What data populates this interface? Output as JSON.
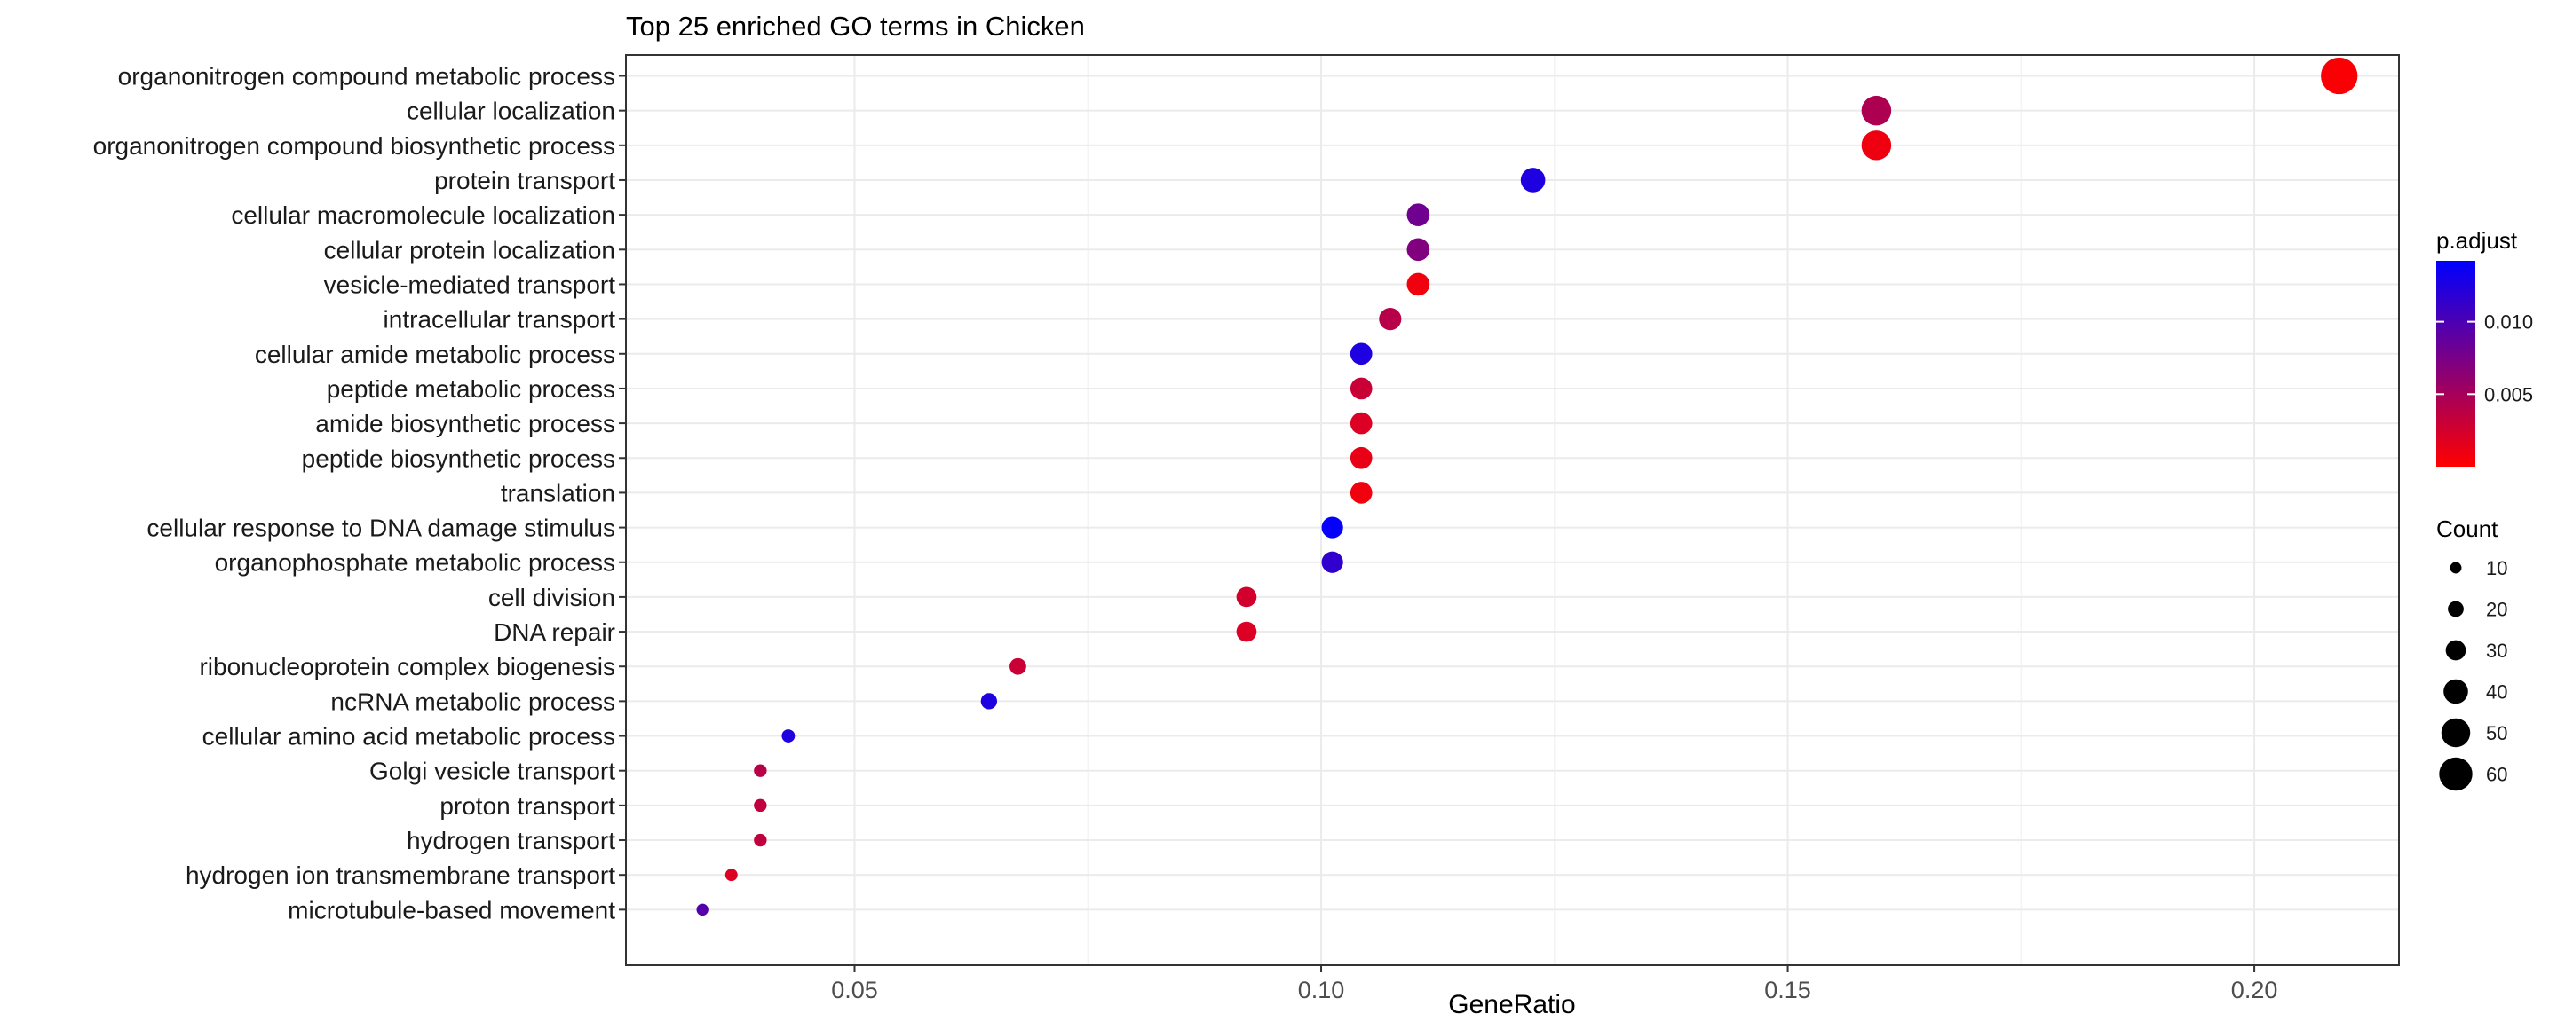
{
  "chart_data": {
    "type": "scatter",
    "title": "Top 25 enriched GO terms in Chicken",
    "xlabel": "GeneRatio",
    "ylabel": "",
    "xlim": [
      0.0255,
      0.2155
    ],
    "xticks": [
      0.05,
      0.1,
      0.15,
      0.2
    ],
    "xtick_labels": [
      "0.05",
      "0.10",
      "0.15",
      "0.20"
    ],
    "grid": true,
    "legend_position": "right",
    "terms": [
      {
        "term": "organonitrogen compound metabolic process",
        "gene_ratio": 0.2091,
        "count": 68,
        "p_adjust": 0.0003
      },
      {
        "term": "cellular localization",
        "gene_ratio": 0.1595,
        "count": 52,
        "p_adjust": 0.0045
      },
      {
        "term": "organonitrogen compound biosynthetic process",
        "gene_ratio": 0.1595,
        "count": 52,
        "p_adjust": 0.0009
      },
      {
        "term": "protein transport",
        "gene_ratio": 0.1227,
        "count": 40,
        "p_adjust": 0.0125
      },
      {
        "term": "cellular macromolecule localization",
        "gene_ratio": 0.1104,
        "count": 36,
        "p_adjust": 0.008
      },
      {
        "term": "cellular protein localization",
        "gene_ratio": 0.1104,
        "count": 36,
        "p_adjust": 0.007
      },
      {
        "term": "vesicle-mediated transport",
        "gene_ratio": 0.1104,
        "count": 36,
        "p_adjust": 0.0008
      },
      {
        "term": "intracellular transport",
        "gene_ratio": 0.1074,
        "count": 35,
        "p_adjust": 0.004
      },
      {
        "term": "cellular amide metabolic process",
        "gene_ratio": 0.1043,
        "count": 34,
        "p_adjust": 0.0125
      },
      {
        "term": "peptide metabolic process",
        "gene_ratio": 0.1043,
        "count": 34,
        "p_adjust": 0.003
      },
      {
        "term": "amide biosynthetic process",
        "gene_ratio": 0.1043,
        "count": 34,
        "p_adjust": 0.002
      },
      {
        "term": "peptide biosynthetic process",
        "gene_ratio": 0.1043,
        "count": 34,
        "p_adjust": 0.0012
      },
      {
        "term": "translation",
        "gene_ratio": 0.1043,
        "count": 34,
        "p_adjust": 0.0008
      },
      {
        "term": "cellular response to DNA damage stimulus",
        "gene_ratio": 0.1012,
        "count": 33,
        "p_adjust": 0.014
      },
      {
        "term": "organophosphate metabolic process",
        "gene_ratio": 0.1012,
        "count": 33,
        "p_adjust": 0.0115
      },
      {
        "term": "cell division",
        "gene_ratio": 0.092,
        "count": 30,
        "p_adjust": 0.0025
      },
      {
        "term": "DNA repair",
        "gene_ratio": 0.092,
        "count": 30,
        "p_adjust": 0.002
      },
      {
        "term": "ribonucleoprotein complex biogenesis",
        "gene_ratio": 0.0675,
        "count": 22,
        "p_adjust": 0.003
      },
      {
        "term": "ncRNA metabolic process",
        "gene_ratio": 0.0644,
        "count": 21,
        "p_adjust": 0.0125
      },
      {
        "term": "cellular amino acid metabolic process",
        "gene_ratio": 0.0429,
        "count": 14,
        "p_adjust": 0.0125
      },
      {
        "term": "Golgi vesicle transport",
        "gene_ratio": 0.0399,
        "count": 13,
        "p_adjust": 0.004
      },
      {
        "term": "proton transport",
        "gene_ratio": 0.0399,
        "count": 13,
        "p_adjust": 0.0035
      },
      {
        "term": "hydrogen transport",
        "gene_ratio": 0.0399,
        "count": 13,
        "p_adjust": 0.0035
      },
      {
        "term": "hydrogen ion transmembrane transport",
        "gene_ratio": 0.0368,
        "count": 12,
        "p_adjust": 0.002
      },
      {
        "term": "microtubule-based movement",
        "gene_ratio": 0.0337,
        "count": 11,
        "p_adjust": 0.0095
      }
    ],
    "color_legend": {
      "title": "p.adjust",
      "range": [
        0.0,
        0.0142
      ],
      "breaks": [
        0.005,
        0.01
      ],
      "break_labels": [
        "0.005",
        "0.010"
      ],
      "low_color": "#ff0000",
      "high_color": "#0000ff"
    },
    "size_legend": {
      "title": "Count",
      "breaks": [
        10,
        20,
        30,
        40,
        50,
        60
      ],
      "break_labels": [
        "10",
        "20",
        "30",
        "40",
        "50",
        "60"
      ],
      "point_color": "#000000"
    },
    "colors": {
      "panel_border": "#333333",
      "grid_major": "#ebebeb",
      "grid_minor": "#f4f4f4",
      "tick": "#333333"
    }
  }
}
